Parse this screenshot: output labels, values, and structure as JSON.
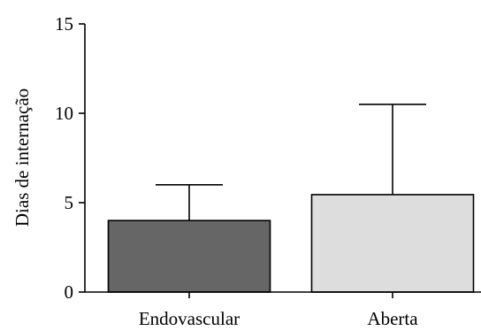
{
  "chart_data": {
    "type": "bar",
    "title": "",
    "xlabel": "",
    "ylabel": "Dias de internação",
    "ylim": [
      0,
      15
    ],
    "yticks": [
      0,
      5,
      10,
      15
    ],
    "grid": false,
    "categories": [
      "Endovascular",
      "Aberta"
    ],
    "values": [
      4.0,
      5.45
    ],
    "error_upper": [
      6.0,
      10.5
    ],
    "colors": [
      "#666666",
      "#dddddd"
    ],
    "edge_color": "#000000"
  }
}
